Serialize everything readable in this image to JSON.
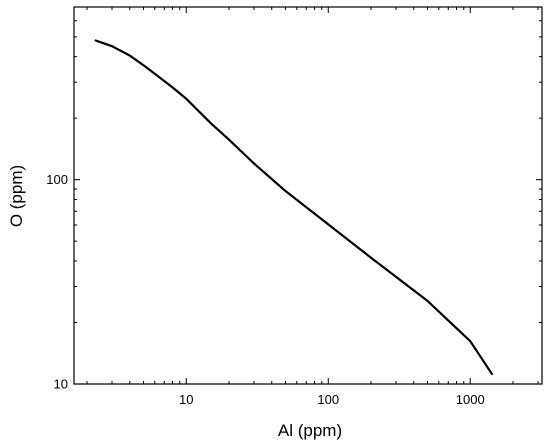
{
  "chart_data": {
    "type": "line",
    "xlabel": "Al (ppm)",
    "ylabel": "O (ppm)",
    "xscale": "log",
    "yscale": "log",
    "xlim": [
      1.62,
      3200
    ],
    "ylim": [
      10,
      700
    ],
    "x_ticks": [
      {
        "value": 10,
        "label": "10"
      },
      {
        "value": 100,
        "label": "100"
      },
      {
        "value": 1000,
        "label": "1000"
      }
    ],
    "y_ticks": [
      {
        "value": 10,
        "label": "10"
      },
      {
        "value": 100,
        "label": "100"
      }
    ],
    "grid": false,
    "series": [
      {
        "color": "#000000",
        "x": [
          2.3,
          3,
          4,
          5,
          6,
          8,
          10,
          15,
          20,
          30,
          50,
          100,
          200,
          500,
          1000,
          1420
        ],
        "y": [
          480,
          450,
          405,
          363,
          330,
          283,
          249,
          188,
          157,
          120,
          88,
          60.4,
          41.5,
          25.5,
          16.2,
          11.2
        ]
      }
    ]
  }
}
